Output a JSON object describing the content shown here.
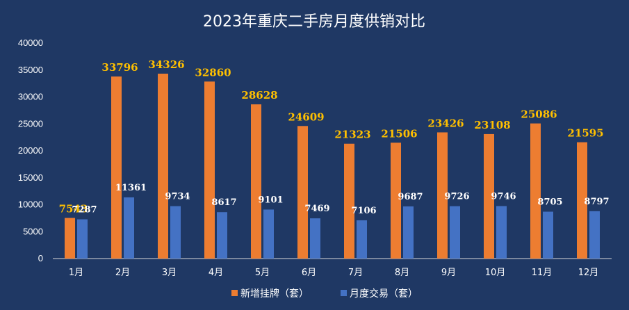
{
  "chart_data": {
    "type": "bar",
    "title": "2023年重庆二手房月度供销对比",
    "categories": [
      "1月",
      "2月",
      "3月",
      "4月",
      "5月",
      "6月",
      "7月",
      "8月",
      "9月",
      "10月",
      "11月",
      "12月"
    ],
    "series": [
      {
        "name": "新增挂牌（套）",
        "color": "#ed7d31",
        "label_color": "#ffc000",
        "values": [
          7543,
          33796,
          34326,
          32860,
          28628,
          24609,
          21323,
          21506,
          23426,
          23108,
          25086,
          21595
        ]
      },
      {
        "name": "月度交易（套）",
        "color": "#4472c4",
        "label_color": "#ffffff",
        "values": [
          7287,
          11361,
          9734,
          8617,
          9101,
          7469,
          7106,
          9687,
          9726,
          9746,
          8705,
          8797
        ]
      }
    ],
    "yticks": [
      0,
      5000,
      10000,
      15000,
      20000,
      25000,
      30000,
      35000,
      40000
    ],
    "ylim": [
      0,
      40000
    ],
    "xlabel": "",
    "ylabel": "",
    "legend_position": "bottom"
  }
}
